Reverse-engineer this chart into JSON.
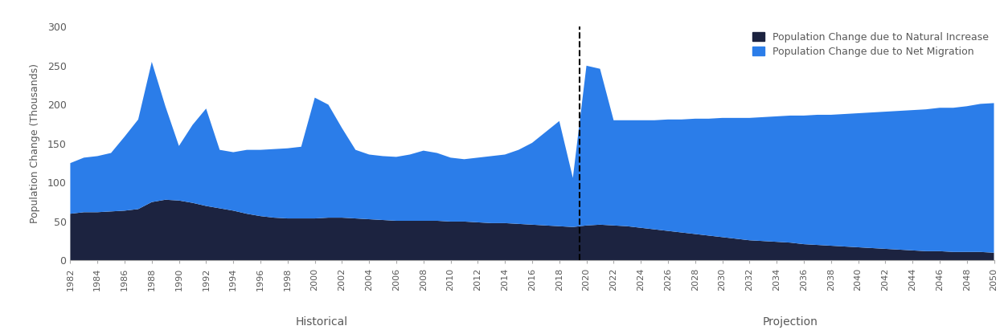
{
  "years": [
    1982,
    1983,
    1984,
    1985,
    1986,
    1987,
    1988,
    1989,
    1990,
    1991,
    1992,
    1993,
    1994,
    1995,
    1996,
    1997,
    1998,
    1999,
    2000,
    2001,
    2002,
    2003,
    2004,
    2005,
    2006,
    2007,
    2008,
    2009,
    2010,
    2011,
    2012,
    2013,
    2014,
    2015,
    2016,
    2017,
    2018,
    2019,
    2020,
    2021,
    2022,
    2023,
    2024,
    2025,
    2026,
    2027,
    2028,
    2029,
    2030,
    2031,
    2032,
    2033,
    2034,
    2035,
    2036,
    2037,
    2038,
    2039,
    2040,
    2041,
    2042,
    2043,
    2044,
    2045,
    2046,
    2047,
    2048,
    2049,
    2050
  ],
  "natural_increase": [
    60,
    62,
    62,
    63,
    64,
    66,
    75,
    78,
    77,
    74,
    70,
    67,
    64,
    60,
    57,
    55,
    54,
    54,
    54,
    55,
    55,
    54,
    53,
    52,
    51,
    51,
    51,
    51,
    50,
    50,
    49,
    48,
    48,
    47,
    46,
    45,
    44,
    43,
    45,
    46,
    45,
    44,
    42,
    40,
    38,
    36,
    34,
    32,
    30,
    28,
    26,
    25,
    24,
    23,
    21,
    20,
    19,
    18,
    17,
    16,
    15,
    14,
    13,
    12,
    12,
    11,
    11,
    11,
    10
  ],
  "net_migration": [
    65,
    70,
    72,
    75,
    95,
    115,
    180,
    120,
    70,
    100,
    125,
    75,
    75,
    82,
    85,
    88,
    90,
    92,
    155,
    145,
    115,
    88,
    83,
    82,
    82,
    85,
    90,
    87,
    82,
    80,
    83,
    86,
    88,
    95,
    105,
    120,
    135,
    63,
    205,
    200,
    135,
    136,
    138,
    140,
    143,
    145,
    148,
    150,
    153,
    155,
    157,
    159,
    161,
    163,
    165,
    167,
    168,
    170,
    172,
    174,
    176,
    178,
    180,
    182,
    184,
    185,
    187,
    190,
    192
  ],
  "color_natural": "#1c2340",
  "color_migration": "#2b7de9",
  "divider_year": 2019.5,
  "ylim": [
    0,
    300
  ],
  "yticks": [
    0,
    50,
    100,
    150,
    200,
    250,
    300
  ],
  "ylabel": "Population Change (Thousands)",
  "historical_label": "Historical",
  "projection_label": "Projection",
  "legend_natural": "Population Change due to Natural Increase",
  "legend_migration": "Population Change due to Net Migration",
  "background_color": "#ffffff",
  "text_color": "#595959"
}
